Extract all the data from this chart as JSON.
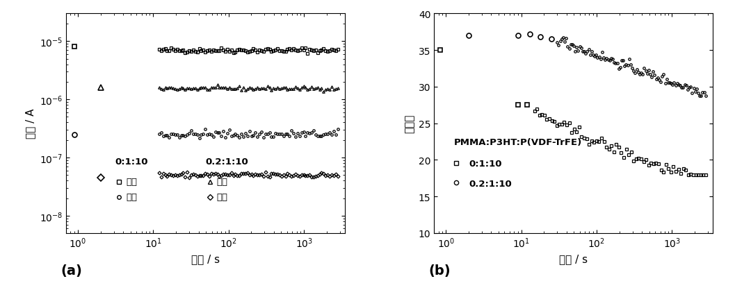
{
  "panel_a": {
    "xlabel": "时间 / s",
    "ylabel": "电流 / A",
    "label_a": "(a)",
    "xlim": [
      0.7,
      3500
    ],
    "ylim": [
      5e-09,
      3e-05
    ],
    "legend1_title": "0:1:10",
    "legend2_title": "0.2:1:10",
    "legend1_on": "开态",
    "legend1_off": "关态",
    "legend2_on": "开态",
    "legend2_off": "关态"
  },
  "panel_b": {
    "xlabel": "时间 / s",
    "ylabel": "开关比",
    "label_b": "(b)",
    "xlim": [
      0.7,
      3500
    ],
    "ylim": [
      10,
      40
    ],
    "yticks": [
      10,
      15,
      20,
      25,
      30,
      35,
      40
    ],
    "legend_title": "PMMA:P3HT:P(VDF-TrFE)",
    "legend1_label": "0:1:10",
    "legend2_label": "0.2:1:10"
  },
  "fontsize": 11,
  "tick_fontsize": 10
}
